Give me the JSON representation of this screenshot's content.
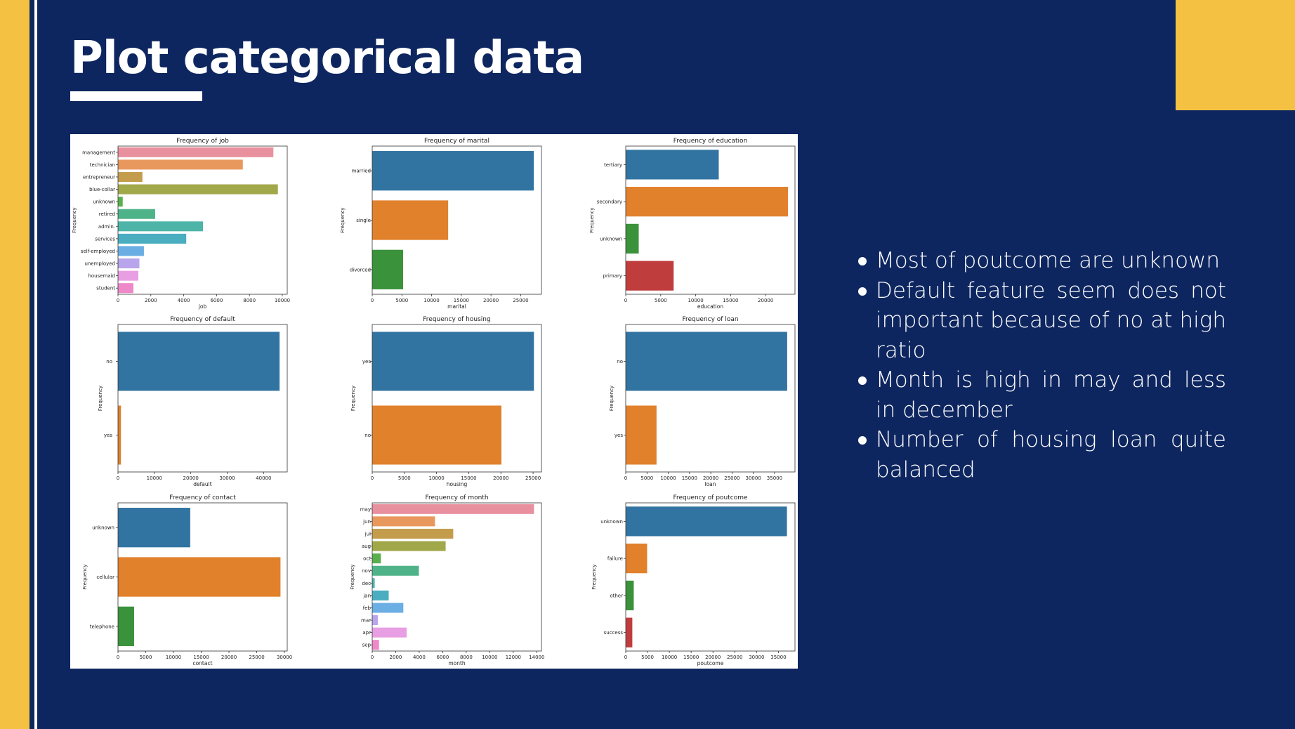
{
  "slide": {
    "title": "Plot categorical data",
    "bullets": [
      "Most of poutcome are unknown",
      "Default feature seem does not important because of no at high ratio",
      "Month is high in may and less in december",
      "Number of housing loan quite balanced"
    ],
    "colors": {
      "background": "#0e2660",
      "accent": "#f5c142",
      "text": "#ffffff"
    }
  },
  "chart_data": [
    {
      "type": "bar",
      "orientation": "horizontal",
      "title": "Frequency of job",
      "xlabel": "job",
      "ylabel": "Frequency",
      "xlim": [
        0,
        10300
      ],
      "xticks": [
        0,
        2000,
        4000,
        6000,
        8000,
        10000
      ],
      "categories": [
        "management",
        "technician",
        "entrepreneur",
        "blue-collar",
        "unknown",
        "retired",
        "admin.",
        "services",
        "self-employed",
        "unemployed",
        "housemaid",
        "student"
      ],
      "values": [
        9458,
        7597,
        1487,
        9732,
        288,
        2264,
        5171,
        4154,
        1579,
        1303,
        1240,
        938
      ],
      "colors": [
        "#e9909e",
        "#e8985d",
        "#c49d4c",
        "#a1a84a",
        "#59b04d",
        "#4fb389",
        "#4db5a8",
        "#4aadc0",
        "#6aaee4",
        "#b9a5ec",
        "#e89ee3",
        "#ee88c8"
      ]
    },
    {
      "type": "bar",
      "orientation": "horizontal",
      "title": "Frequency of marital",
      "xlabel": "marital",
      "ylabel": "Frequency",
      "xlim": [
        0,
        28500
      ],
      "xticks": [
        0,
        5000,
        10000,
        15000,
        20000,
        25000
      ],
      "categories": [
        "married",
        "single",
        "divorced"
      ],
      "values": [
        27214,
        12790,
        5207
      ],
      "colors": [
        "#3274a1",
        "#e1812c",
        "#3a923a"
      ]
    },
    {
      "type": "bar",
      "orientation": "horizontal",
      "title": "Frequency of education",
      "xlabel": "education",
      "ylabel": "Frequency",
      "xlim": [
        0,
        24200
      ],
      "xticks": [
        0,
        5000,
        10000,
        15000,
        20000
      ],
      "categories": [
        "tertiary",
        "secondary",
        "unknown",
        "primary"
      ],
      "values": [
        13301,
        23202,
        1857,
        6851
      ],
      "colors": [
        "#3274a1",
        "#e1812c",
        "#3a923a",
        "#c03d3e"
      ]
    },
    {
      "type": "bar",
      "orientation": "horizontal",
      "title": "Frequency of default",
      "xlabel": "default",
      "ylabel": "Frequency",
      "xlim": [
        0,
        46500
      ],
      "xticks": [
        0,
        10000,
        20000,
        30000,
        40000
      ],
      "categories": [
        "no",
        "yes"
      ],
      "values": [
        44396,
        815
      ],
      "colors": [
        "#3274a1",
        "#e1812c"
      ]
    },
    {
      "type": "bar",
      "orientation": "horizontal",
      "title": "Frequency of housing",
      "xlabel": "housing",
      "ylabel": "Frequency",
      "xlim": [
        0,
        26300
      ],
      "xticks": [
        0,
        5000,
        10000,
        15000,
        20000,
        25000
      ],
      "categories": [
        "yes",
        "no"
      ],
      "values": [
        25130,
        20081
      ],
      "colors": [
        "#3274a1",
        "#e1812c"
      ]
    },
    {
      "type": "bar",
      "orientation": "horizontal",
      "title": "Frequency of loan",
      "xlabel": "loan",
      "ylabel": "Frequency",
      "xlim": [
        0,
        39800
      ],
      "xticks": [
        0,
        5000,
        10000,
        15000,
        20000,
        25000,
        30000,
        35000
      ],
      "categories": [
        "no",
        "yes"
      ],
      "values": [
        37967,
        7244
      ],
      "colors": [
        "#3274a1",
        "#e1812c"
      ]
    },
    {
      "type": "bar",
      "orientation": "horizontal",
      "title": "Frequency of contact",
      "xlabel": "contact",
      "ylabel": "Frequency",
      "xlim": [
        0,
        30500
      ],
      "xticks": [
        0,
        5000,
        10000,
        15000,
        20000,
        25000,
        30000
      ],
      "categories": [
        "unknown",
        "cellular",
        "telephone"
      ],
      "values": [
        13020,
        29285,
        2906
      ],
      "colors": [
        "#3274a1",
        "#e1812c",
        "#3a923a"
      ]
    },
    {
      "type": "bar",
      "orientation": "horizontal",
      "title": "Frequency of month",
      "xlabel": "month",
      "ylabel": "Frequency",
      "xlim": [
        0,
        14400
      ],
      "xticks": [
        0,
        2000,
        4000,
        6000,
        8000,
        10000,
        12000,
        14000
      ],
      "categories": [
        "may",
        "jun",
        "jul",
        "aug",
        "oct",
        "nov",
        "dec",
        "jan",
        "feb",
        "mar",
        "apr",
        "sep"
      ],
      "values": [
        13766,
        5341,
        6895,
        6247,
        738,
        3970,
        214,
        1403,
        2649,
        477,
        2932,
        579
      ],
      "colors": [
        "#e9909e",
        "#e8985d",
        "#c49d4c",
        "#a1a84a",
        "#59b04d",
        "#4fb389",
        "#4db5a8",
        "#4aadc0",
        "#6aaee4",
        "#b9a5ec",
        "#e89ee3",
        "#ee88c8"
      ]
    },
    {
      "type": "bar",
      "orientation": "horizontal",
      "title": "Frequency of poutcome",
      "xlabel": "poutcome",
      "ylabel": "Frequency",
      "xlim": [
        0,
        38800
      ],
      "xticks": [
        0,
        5000,
        10000,
        15000,
        20000,
        25000,
        30000,
        35000
      ],
      "categories": [
        "unknown",
        "failure",
        "other",
        "success"
      ],
      "values": [
        36959,
        4901,
        1840,
        1511
      ],
      "colors": [
        "#3274a1",
        "#e1812c",
        "#3a923a",
        "#c03d3e"
      ]
    }
  ]
}
